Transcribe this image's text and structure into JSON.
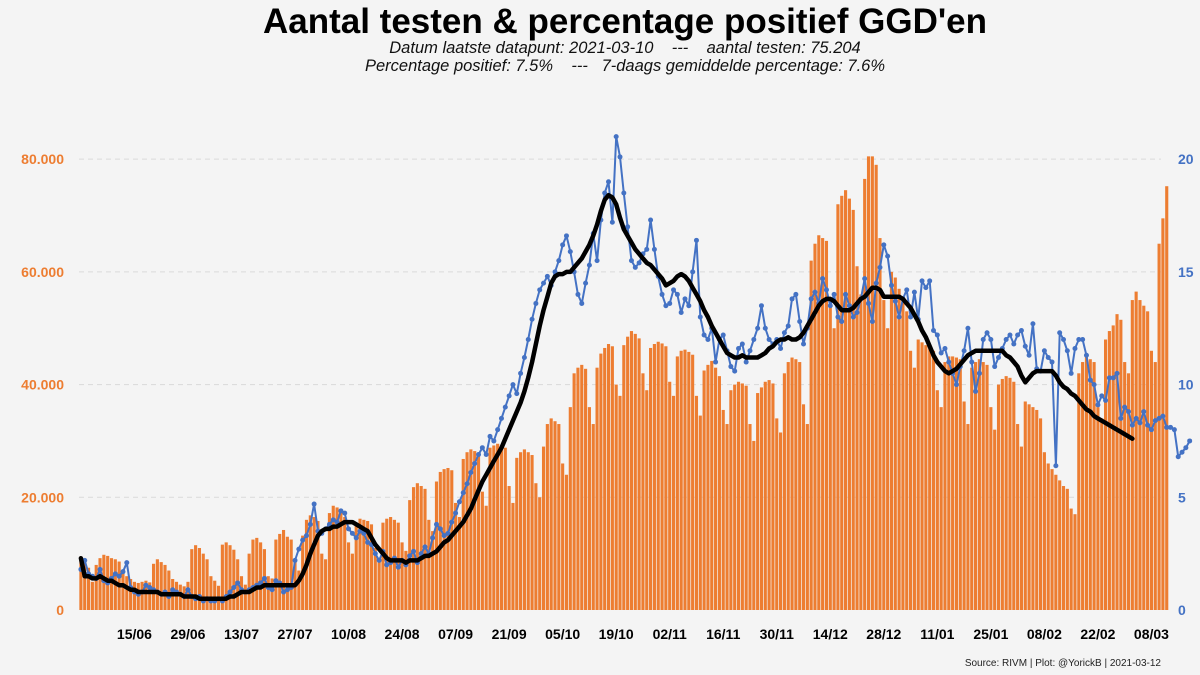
{
  "title": "Aantal testen & percentage positief GGD'en",
  "subtitle1": "Datum laatste datapunt: 2021-03-10    ---    aantal testen: 75.204",
  "subtitle2": "Percentage positief: 7.5%    ---   7-daags gemiddelde percentage: 7.6%",
  "source": "Source: RIVM | Plot: @YorickB |  2021-03-12",
  "colors": {
    "bars": "#ed7d31",
    "pct_line": "#4472c4",
    "avg_line": "#000000",
    "left_axis": "#ed7d31",
    "right_axis": "#4472c4",
    "grid": "#d9d9d9"
  },
  "chart_data": {
    "type": "bar",
    "grid": true,
    "legend": "none",
    "x_type": "date",
    "x_start": "2020-06-01",
    "x_end": "2021-03-10",
    "x_tick_labels": [
      "15/06",
      "29/06",
      "13/07",
      "27/07",
      "10/08",
      "24/08",
      "07/09",
      "21/09",
      "05/10",
      "19/10",
      "02/11",
      "16/11",
      "30/11",
      "14/12",
      "28/12",
      "11/01",
      "25/01",
      "08/02",
      "22/02",
      "08/03"
    ],
    "y_left": {
      "label": "",
      "lim": [
        0,
        85000
      ],
      "ticks": [
        0,
        20000,
        40000,
        60000,
        80000
      ],
      "tick_labels": [
        "0",
        "20.000",
        "40.000",
        "60.000",
        "80.000"
      ]
    },
    "y_right": {
      "label": "",
      "lim": [
        0,
        21.25
      ],
      "ticks": [
        0,
        5,
        10,
        15,
        20
      ],
      "tick_labels": [
        "0",
        "5",
        "10",
        "15",
        "20"
      ]
    },
    "series": [
      {
        "kind": "bar",
        "axis": "left",
        "values": [
          [
            9500,
            9000,
            7500,
            5000,
            8000,
            9200,
            9800,
            9600,
            9200,
            9000,
            8600,
            7000,
            6000,
            5500,
            5000,
            4800,
            5000,
            5200,
            4900,
            8200,
            9000,
            8500,
            8000,
            7000,
            5500,
            5000,
            4500,
            4200,
            5000,
            10800,
            11500,
            11000,
            10000,
            9000,
            6000,
            5200,
            4300,
            11600,
            12000,
            11500,
            10700,
            9000,
            6000,
            4500,
            10000,
            12500,
            12800,
            12000,
            10800,
            6000,
            5600,
            12500,
            13500,
            14200,
            13000,
            12500,
            9000,
            7000,
            13200,
            16000,
            16800,
            16500,
            15800,
            10000,
            9000,
            17200,
            18500,
            18200,
            17800,
            16500,
            12000,
            10000,
            15200,
            16200,
            16000,
            15800,
            15200,
            11000,
            9000,
            15500,
            16200,
            16500,
            16000,
            15500,
            12000,
            10500,
            19500,
            21800,
            22500,
            22000,
            21500,
            16000,
            14000,
            22800,
            24500,
            25000,
            25200,
            24800,
            19000,
            16500,
            26800,
            28000,
            28500,
            28200,
            27800,
            21000,
            18500,
            28800,
            29200,
            29500,
            29200,
            28800,
            22000,
            19000,
            27000,
            28000,
            28500,
            28000,
            27500,
            22500,
            20000,
            29000,
            33000,
            34000,
            33500,
            33000,
            26000,
            24000,
            36000,
            42000,
            43000,
            43500,
            42800,
            36000,
            33000,
            43000,
            45500,
            46500,
            47200,
            46800,
            40000,
            38000,
            47000,
            48500,
            49500,
            49000,
            48200,
            42000,
            39000,
            46500,
            47200,
            47600,
            47300,
            46800,
            40500,
            38000,
            45000,
            46000,
            46200,
            45800,
            45300,
            38000,
            34500,
            42500,
            43500,
            44200,
            43000,
            41500,
            35500,
            33000,
            39000,
            40000,
            40500,
            40200,
            39800,
            33000,
            30000,
            38500,
            39500,
            40500,
            40800,
            40200,
            34000,
            31500,
            42000,
            44000,
            44800,
            44500,
            44000,
            36500,
            33000,
            62000,
            65000,
            66500,
            66000,
            65500,
            54000,
            50000,
            72000,
            73500,
            74500,
            73000,
            71000,
            61000,
            56000,
            76500,
            80500,
            80500,
            79000,
            66000,
            55000,
            50000,
            60000,
            59000,
            57000,
            55000,
            53000,
            46000,
            43000,
            48000,
            47500,
            47000,
            46500,
            46000,
            39000,
            36000,
            44000,
            45000,
            45000,
            44800,
            44500,
            37000,
            33000,
            43000,
            44000,
            44500,
            44000,
            43500,
            36000,
            32000,
            40000,
            41000,
            41500,
            41200,
            40500,
            33000,
            29000,
            37000,
            36500,
            36000,
            35500,
            34000,
            28000,
            26000,
            25000,
            24000,
            23000,
            22000,
            21500,
            18000,
            17000,
            42000,
            44000,
            45000,
            44500,
            44000,
            36000,
            34000,
            48000,
            49500,
            50500,
            52500,
            51500,
            44000,
            42000,
            55000,
            56500,
            55000,
            54000,
            53000,
            46000,
            44000,
            65000,
            69500,
            75204
          ]
        ]
      },
      {
        "kind": "line",
        "axis": "right",
        "name": "",
        "values": [
          [
            1.8,
            2.2,
            1.6,
            1.5,
            1.4,
            1.8,
            1.3,
            1.2,
            1.4,
            1.6,
            1.5,
            1.7,
            2.1,
            1.0,
            0.8,
            0.7,
            0.8,
            1.1,
            1.0,
            0.9,
            0.8,
            0.7,
            0.8,
            0.6,
            0.9,
            0.8,
            0.7,
            0.6,
            0.9,
            0.6,
            0.5,
            0.6,
            0.4,
            0.5,
            0.4,
            0.4,
            0.5,
            0.4,
            0.6,
            0.8,
            1.0,
            1.2,
            0.9,
            0.8,
            0.9,
            1.0,
            1.1,
            1.2,
            1.4,
            1.0,
            0.9,
            1.3,
            1.2,
            0.8,
            0.9,
            1.0,
            2.2,
            2.7,
            3.1,
            3.3,
            3.8,
            4.7,
            3.5,
            3.4,
            3.6,
            3.8,
            4.0,
            3.9,
            4.4,
            4.3,
            3.6,
            3.4,
            3.2,
            3.5,
            3.4,
            3.0,
            2.9,
            2.5,
            2.2,
            2.6,
            2.0,
            2.1,
            2.3,
            1.9,
            2.2,
            2.0,
            2.4,
            2.6,
            2.1,
            2.5,
            2.8,
            2.5,
            3.2,
            3.8,
            3.6,
            3.3,
            3.4,
            3.9,
            4.3,
            4.8,
            5.2,
            5.6,
            6.1,
            6.5,
            6.9,
            7.2,
            6.9,
            7.7,
            7.5,
            8.0,
            8.5,
            9.0,
            9.5,
            10.0,
            9.6,
            10.5,
            11.2,
            12.0,
            12.9,
            13.6,
            14.2,
            14.5,
            14.8,
            14.4,
            15.0,
            15.5,
            16.2,
            16.6,
            15.9,
            15.0,
            14.0,
            13.6,
            14.5,
            15.3,
            16.7,
            15.5,
            17.3,
            18.5,
            19.0,
            17.2,
            21.0,
            20.1,
            18.5,
            17.0,
            15.5,
            15.2,
            15.4,
            15.8,
            16.0,
            17.3,
            16.0,
            14.8,
            14.0,
            13.5,
            13.6,
            14.2,
            14.0,
            13.2,
            13.8,
            13.5,
            15.0,
            16.4,
            13.0,
            12.2,
            12.0,
            12.5,
            11.0,
            12.0,
            12.2,
            11.5,
            10.8,
            10.6,
            11.6,
            11.8,
            11.0,
            11.5,
            12.0,
            12.5,
            13.5,
            12.5,
            12.0,
            11.8,
            12.0,
            11.6,
            12.3,
            12.6,
            13.8,
            14.0,
            12.8,
            11.8,
            12.5,
            13.8,
            14.1,
            13.6,
            14.7,
            14.2,
            13.5,
            14.0,
            13.0,
            12.8,
            14.0,
            13.5,
            13.0,
            13.2,
            13.8,
            14.7,
            13.6,
            12.8,
            14.5,
            15.2,
            16.2,
            15.7,
            14.4,
            13.7,
            13.0,
            13.8,
            14.2,
            13.0,
            14.1,
            12.9,
            14.6,
            14.3,
            14.6,
            12.4,
            12.2,
            11.4,
            11.6,
            11.0,
            10.5,
            10.0,
            10.8,
            11.5,
            12.5,
            11.0,
            9.7,
            10.5,
            12.0,
            12.3,
            12.0,
            10.8,
            11.2,
            11.6,
            12.0,
            12.2,
            11.8,
            12.2,
            12.4,
            11.7,
            11.3,
            12.7,
            10.7,
            10.6,
            11.5,
            11.2,
            11.0,
            6.4,
            12.3,
            12.0,
            11.5,
            10.5,
            11.6,
            12.0,
            12.0,
            11.3,
            10.2,
            10.0,
            9.1,
            9.5,
            9.3,
            10.3,
            10.3,
            10.5,
            8.5,
            9.0,
            8.8,
            8.2,
            8.5,
            8.3,
            8.8,
            8.2,
            8.0,
            8.4,
            8.5,
            8.6,
            8.1,
            8.1,
            8.0,
            6.8,
            7.0,
            7.2,
            7.5
          ]
        ]
      },
      {
        "kind": "line",
        "axis": "right",
        "name": "",
        "values": [
          [
            2.3,
            1.5,
            1.5,
            1.4,
            1.4,
            1.5,
            1.4,
            1.3,
            1.3,
            1.2,
            1.1,
            1.1,
            1.0,
            0.9,
            0.9,
            0.8,
            0.8,
            0.8,
            0.8,
            0.8,
            0.8,
            0.7,
            0.7,
            0.7,
            0.7,
            0.7,
            0.7,
            0.6,
            0.6,
            0.6,
            0.6,
            0.5,
            0.5,
            0.5,
            0.5,
            0.5,
            0.5,
            0.5,
            0.5,
            0.6,
            0.6,
            0.7,
            0.8,
            0.8,
            0.8,
            0.9,
            1.0,
            1.0,
            1.1,
            1.1,
            1.1,
            1.1,
            1.1,
            1.1,
            1.1,
            1.1,
            1.1,
            1.3,
            1.6,
            2.0,
            2.5,
            2.9,
            3.3,
            3.5,
            3.6,
            3.6,
            3.7,
            3.7,
            3.8,
            3.9,
            3.9,
            3.9,
            3.8,
            3.7,
            3.6,
            3.5,
            3.2,
            2.9,
            2.7,
            2.5,
            2.3,
            2.2,
            2.2,
            2.2,
            2.2,
            2.1,
            2.2,
            2.2,
            2.2,
            2.3,
            2.4,
            2.4,
            2.5,
            2.6,
            2.8,
            3.0,
            3.1,
            3.3,
            3.5,
            3.7,
            3.9,
            4.2,
            4.5,
            4.9,
            5.3,
            5.7,
            6.0,
            6.3,
            6.6,
            6.9,
            7.2,
            7.6,
            8.0,
            8.4,
            8.8,
            9.2,
            9.7,
            10.3,
            11.0,
            11.8,
            12.6,
            13.3,
            13.9,
            14.5,
            14.8,
            14.9,
            14.9,
            15.0,
            15.0,
            15.2,
            15.4,
            15.6,
            15.9,
            16.2,
            16.6,
            17.1,
            17.7,
            18.2,
            18.4,
            18.3,
            18.0,
            17.4,
            16.9,
            16.6,
            16.3,
            16.0,
            15.8,
            15.6,
            15.4,
            15.3,
            15.1,
            14.9,
            14.7,
            14.4,
            14.5,
            14.6,
            14.8,
            14.9,
            14.8,
            14.6,
            14.3,
            14.0,
            13.7,
            13.3,
            13.0,
            12.6,
            12.3,
            12.0,
            11.7,
            11.4,
            11.3,
            11.2,
            11.2,
            11.3,
            11.2,
            11.2,
            11.2,
            11.2,
            11.3,
            11.4,
            11.6,
            11.7,
            11.9,
            12.0,
            12.0,
            12.1,
            12.0,
            12.0,
            12.1,
            12.3,
            12.6,
            12.9,
            13.2,
            13.5,
            13.7,
            13.8,
            13.8,
            13.7,
            13.5,
            13.3,
            13.3,
            13.3,
            13.4,
            13.6,
            13.8,
            13.9,
            14.1,
            14.3,
            14.3,
            14.2,
            13.9,
            13.9,
            13.9,
            13.9,
            13.9,
            13.8,
            13.6,
            13.4,
            13.1,
            12.8,
            12.4,
            12.1,
            11.7,
            11.3,
            11.0,
            10.8,
            10.6,
            10.5,
            10.6,
            10.7,
            10.9,
            11.1,
            11.3,
            11.4,
            11.5,
            11.5,
            11.5,
            11.5,
            11.5,
            11.5,
            11.5,
            11.5,
            11.3,
            11.2,
            11.0,
            10.8,
            10.4,
            10.1,
            10.3,
            10.5,
            10.6,
            10.6,
            10.6,
            10.6,
            10.6,
            10.4,
            10.1,
            9.9,
            9.8,
            9.6,
            9.5,
            9.3,
            9.1,
            8.9,
            8.8,
            8.6,
            8.5,
            8.4,
            8.3,
            8.2,
            8.1,
            8.0,
            7.9,
            7.8,
            7.7,
            7.6
          ]
        ]
      }
    ]
  }
}
